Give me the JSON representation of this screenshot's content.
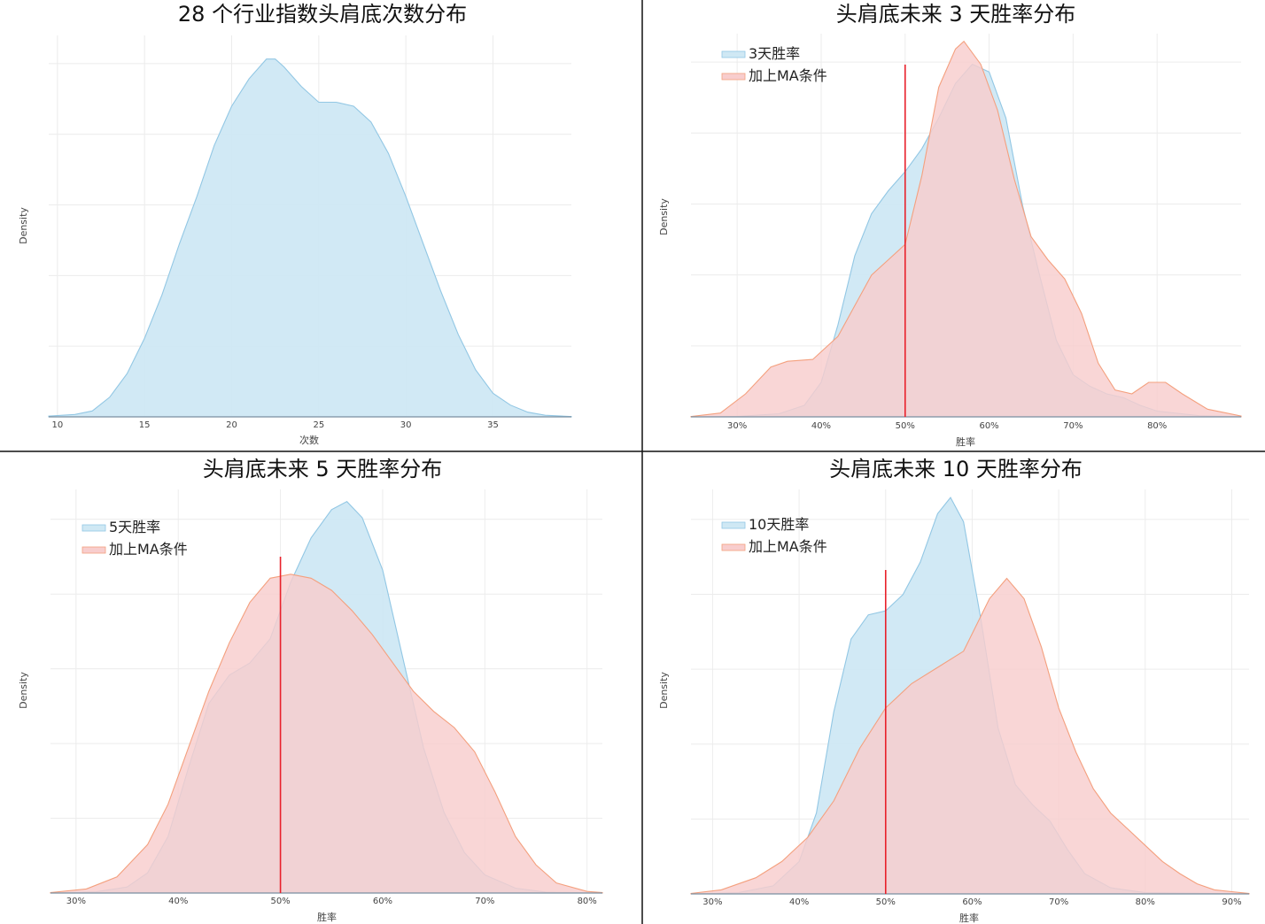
{
  "chart_data": [
    {
      "type": "area",
      "title": "28 个行业指数头肩底次数分布",
      "xlabel": "次数",
      "ylabel": "Density",
      "xlim": [
        9.5,
        39.5
      ],
      "xticks": [
        10,
        15,
        20,
        25,
        30,
        35
      ],
      "tick_format": "number",
      "grid": true,
      "legend": null,
      "reference_line": null,
      "series": [
        {
          "name": "",
          "color": "#92c7e4",
          "fill": "#cfe8f4",
          "points": [
            [
              9.5,
              0.002
            ],
            [
              11,
              0.006
            ],
            [
              12,
              0.015
            ],
            [
              13,
              0.05
            ],
            [
              14,
              0.11
            ],
            [
              15,
              0.2
            ],
            [
              16,
              0.31
            ],
            [
              17,
              0.44
            ],
            [
              18,
              0.56
            ],
            [
              19,
              0.69
            ],
            [
              20,
              0.79
            ],
            [
              21,
              0.86
            ],
            [
              22,
              0.91
            ],
            [
              22.5,
              0.91
            ],
            [
              23,
              0.89
            ],
            [
              24,
              0.84
            ],
            [
              25,
              0.8
            ],
            [
              26,
              0.8
            ],
            [
              27,
              0.79
            ],
            [
              28,
              0.75
            ],
            [
              29,
              0.67
            ],
            [
              30,
              0.56
            ],
            [
              31,
              0.44
            ],
            [
              32,
              0.32
            ],
            [
              33,
              0.21
            ],
            [
              34,
              0.12
            ],
            [
              35,
              0.06
            ],
            [
              36,
              0.03
            ],
            [
              37,
              0.012
            ],
            [
              38,
              0.004
            ],
            [
              39.5,
              0.001
            ]
          ]
        }
      ]
    },
    {
      "type": "area",
      "title": "头肩底未来 3 天胜率分布",
      "xlabel": "胜率",
      "ylabel": "Density",
      "xlim": [
        0.245,
        0.9
      ],
      "xticks": [
        0.3,
        0.4,
        0.5,
        0.6,
        0.7,
        0.8
      ],
      "tick_format": "percent",
      "grid": true,
      "legend": "top-left",
      "reference_line": 0.5,
      "series": [
        {
          "name": "3天胜率",
          "color": "#92c7e4",
          "fill": "#cfe8f4",
          "points": [
            [
              0.245,
              0
            ],
            [
              0.3,
              0.001
            ],
            [
              0.35,
              0.008
            ],
            [
              0.38,
              0.03
            ],
            [
              0.4,
              0.09
            ],
            [
              0.42,
              0.24
            ],
            [
              0.44,
              0.42
            ],
            [
              0.46,
              0.53
            ],
            [
              0.48,
              0.59
            ],
            [
              0.5,
              0.64
            ],
            [
              0.52,
              0.7
            ],
            [
              0.54,
              0.78
            ],
            [
              0.56,
              0.87
            ],
            [
              0.58,
              0.92
            ],
            [
              0.6,
              0.9
            ],
            [
              0.62,
              0.78
            ],
            [
              0.64,
              0.55
            ],
            [
              0.66,
              0.37
            ],
            [
              0.68,
              0.2
            ],
            [
              0.7,
              0.11
            ],
            [
              0.72,
              0.08
            ],
            [
              0.74,
              0.06
            ],
            [
              0.76,
              0.05
            ],
            [
              0.78,
              0.03
            ],
            [
              0.8,
              0.015
            ],
            [
              0.85,
              0.003
            ],
            [
              0.9,
              0.0005
            ]
          ]
        },
        {
          "name": "加上MA条件",
          "color": "#f4a07e",
          "fill": "#f8cdcd",
          "points": [
            [
              0.245,
              0.001
            ],
            [
              0.28,
              0.01
            ],
            [
              0.31,
              0.06
            ],
            [
              0.34,
              0.13
            ],
            [
              0.36,
              0.145
            ],
            [
              0.39,
              0.15
            ],
            [
              0.42,
              0.21
            ],
            [
              0.44,
              0.29
            ],
            [
              0.46,
              0.37
            ],
            [
              0.48,
              0.41
            ],
            [
              0.5,
              0.45
            ],
            [
              0.52,
              0.63
            ],
            [
              0.54,
              0.86
            ],
            [
              0.56,
              0.96
            ],
            [
              0.57,
              0.98
            ],
            [
              0.59,
              0.92
            ],
            [
              0.61,
              0.8
            ],
            [
              0.63,
              0.62
            ],
            [
              0.65,
              0.47
            ],
            [
              0.67,
              0.41
            ],
            [
              0.69,
              0.36
            ],
            [
              0.71,
              0.27
            ],
            [
              0.73,
              0.14
            ],
            [
              0.75,
              0.07
            ],
            [
              0.77,
              0.06
            ],
            [
              0.79,
              0.09
            ],
            [
              0.81,
              0.09
            ],
            [
              0.83,
              0.06
            ],
            [
              0.86,
              0.02
            ],
            [
              0.9,
              0.002
            ]
          ]
        }
      ]
    },
    {
      "type": "area",
      "title": "头肩底未来 5 天胜率分布",
      "xlabel": "胜率",
      "ylabel": "Density",
      "xlim": [
        0.275,
        0.815
      ],
      "xticks": [
        0.3,
        0.4,
        0.5,
        0.6,
        0.7,
        0.8
      ],
      "tick_format": "percent",
      "grid": true,
      "legend": "top-left",
      "reference_line": 0.5,
      "series": [
        {
          "name": "5天胜率",
          "color": "#92c7e4",
          "fill": "#cfe8f4",
          "points": [
            [
              0.275,
              0
            ],
            [
              0.32,
              0.003
            ],
            [
              0.35,
              0.015
            ],
            [
              0.37,
              0.05
            ],
            [
              0.39,
              0.14
            ],
            [
              0.41,
              0.31
            ],
            [
              0.43,
              0.47
            ],
            [
              0.45,
              0.54
            ],
            [
              0.47,
              0.57
            ],
            [
              0.49,
              0.63
            ],
            [
              0.51,
              0.77
            ],
            [
              0.53,
              0.88
            ],
            [
              0.55,
              0.95
            ],
            [
              0.565,
              0.97
            ],
            [
              0.58,
              0.93
            ],
            [
              0.6,
              0.8
            ],
            [
              0.62,
              0.58
            ],
            [
              0.64,
              0.36
            ],
            [
              0.66,
              0.2
            ],
            [
              0.68,
              0.1
            ],
            [
              0.7,
              0.045
            ],
            [
              0.73,
              0.012
            ],
            [
              0.76,
              0.002
            ],
            [
              0.815,
              0
            ]
          ]
        },
        {
          "name": "加上MA条件",
          "color": "#f4a07e",
          "fill": "#f8cdcd",
          "points": [
            [
              0.275,
              0.001
            ],
            [
              0.31,
              0.01
            ],
            [
              0.34,
              0.04
            ],
            [
              0.37,
              0.12
            ],
            [
              0.39,
              0.22
            ],
            [
              0.41,
              0.36
            ],
            [
              0.43,
              0.5
            ],
            [
              0.45,
              0.62
            ],
            [
              0.47,
              0.72
            ],
            [
              0.49,
              0.78
            ],
            [
              0.51,
              0.79
            ],
            [
              0.53,
              0.78
            ],
            [
              0.55,
              0.75
            ],
            [
              0.57,
              0.7
            ],
            [
              0.59,
              0.64
            ],
            [
              0.61,
              0.57
            ],
            [
              0.63,
              0.5
            ],
            [
              0.65,
              0.45
            ],
            [
              0.67,
              0.41
            ],
            [
              0.69,
              0.35
            ],
            [
              0.71,
              0.25
            ],
            [
              0.73,
              0.14
            ],
            [
              0.75,
              0.07
            ],
            [
              0.77,
              0.025
            ],
            [
              0.8,
              0.004
            ],
            [
              0.815,
              0.001
            ]
          ]
        }
      ]
    },
    {
      "type": "area",
      "title": "头肩底未来 10 天胜率分布",
      "xlabel": "胜率",
      "ylabel": "Density",
      "xlim": [
        0.275,
        0.92
      ],
      "xticks": [
        0.3,
        0.4,
        0.5,
        0.6,
        0.7,
        0.8,
        0.9
      ],
      "tick_format": "percent",
      "grid": true,
      "legend": "top-left",
      "reference_line": 0.5,
      "series": [
        {
          "name": "10天胜率",
          "color": "#92c7e4",
          "fill": "#cfe8f4",
          "points": [
            [
              0.275,
              0
            ],
            [
              0.33,
              0.003
            ],
            [
              0.37,
              0.02
            ],
            [
              0.4,
              0.08
            ],
            [
              0.42,
              0.2
            ],
            [
              0.44,
              0.45
            ],
            [
              0.46,
              0.63
            ],
            [
              0.48,
              0.69
            ],
            [
              0.5,
              0.7
            ],
            [
              0.52,
              0.74
            ],
            [
              0.54,
              0.82
            ],
            [
              0.56,
              0.94
            ],
            [
              0.575,
              0.98
            ],
            [
              0.59,
              0.92
            ],
            [
              0.61,
              0.68
            ],
            [
              0.63,
              0.41
            ],
            [
              0.65,
              0.27
            ],
            [
              0.67,
              0.22
            ],
            [
              0.69,
              0.18
            ],
            [
              0.71,
              0.11
            ],
            [
              0.73,
              0.05
            ],
            [
              0.76,
              0.015
            ],
            [
              0.8,
              0.003
            ],
            [
              0.92,
              0
            ]
          ]
        },
        {
          "name": "加上MA条件",
          "color": "#f4a07e",
          "fill": "#f8cdcd",
          "points": [
            [
              0.275,
              0.001
            ],
            [
              0.31,
              0.01
            ],
            [
              0.35,
              0.04
            ],
            [
              0.38,
              0.08
            ],
            [
              0.41,
              0.14
            ],
            [
              0.44,
              0.23
            ],
            [
              0.47,
              0.36
            ],
            [
              0.5,
              0.46
            ],
            [
              0.53,
              0.52
            ],
            [
              0.56,
              0.56
            ],
            [
              0.59,
              0.6
            ],
            [
              0.62,
              0.73
            ],
            [
              0.64,
              0.78
            ],
            [
              0.66,
              0.73
            ],
            [
              0.68,
              0.61
            ],
            [
              0.7,
              0.46
            ],
            [
              0.72,
              0.35
            ],
            [
              0.74,
              0.26
            ],
            [
              0.76,
              0.2
            ],
            [
              0.78,
              0.16
            ],
            [
              0.8,
              0.12
            ],
            [
              0.82,
              0.08
            ],
            [
              0.84,
              0.05
            ],
            [
              0.86,
              0.025
            ],
            [
              0.88,
              0.01
            ],
            [
              0.92,
              0.001
            ]
          ]
        }
      ]
    }
  ]
}
